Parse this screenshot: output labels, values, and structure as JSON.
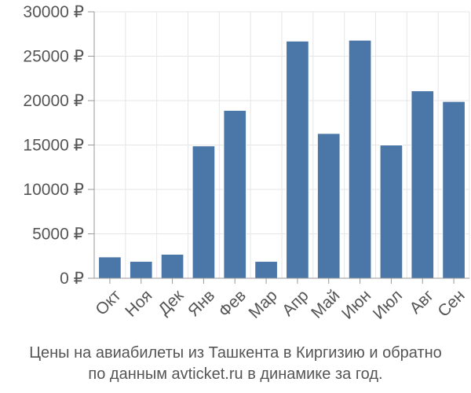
{
  "chart_data": {
    "type": "bar",
    "categories": [
      "Окт",
      "Ноя",
      "Дек",
      "Янв",
      "Фев",
      "Мар",
      "Апр",
      "Май",
      "Июн",
      "Июл",
      "Авг",
      "Сен"
    ],
    "values": [
      2400,
      1900,
      2700,
      14900,
      18900,
      1900,
      26700,
      16300,
      26800,
      15000,
      21100,
      19900
    ],
    "ylim": [
      0,
      30000
    ],
    "y_ticks": [
      0,
      5000,
      10000,
      15000,
      20000,
      25000,
      30000
    ],
    "y_tick_labels": [
      "0 ₽",
      "5000 ₽",
      "10000 ₽",
      "15000 ₽",
      "20000 ₽",
      "25000 ₽",
      "30000 ₽"
    ],
    "grid": true,
    "bar_color": "#4a76a8",
    "grid_color": "#e6e6e6",
    "caption": [
      "Цены на авиабилеты из Ташкента в Киргизию и обратно",
      "по данным avticket.ru в динамике за год."
    ]
  }
}
